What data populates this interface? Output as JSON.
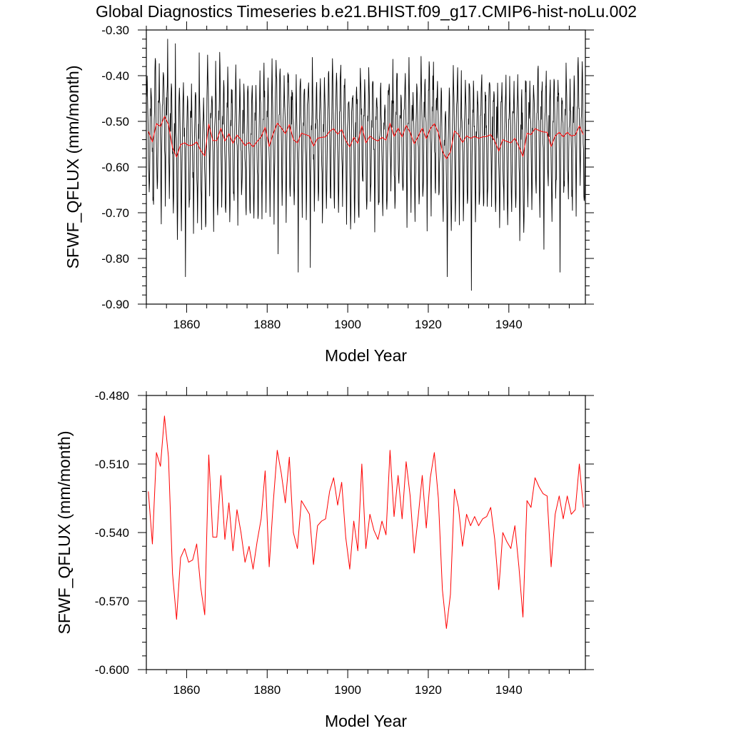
{
  "title": "Global Diagnostics Timeseries b.e21.BHIST.f09_g17.CMIP6-hist-noLu.002",
  "chart_data": [
    {
      "type": "line",
      "ylabel": "SFWF_QFLUX (mm/month)",
      "xlabel": "Model Year",
      "xlim": [
        1850,
        1959
      ],
      "ylim": [
        -0.9,
        -0.3
      ],
      "xticks": [
        1860,
        1880,
        1900,
        1920,
        1940
      ],
      "xtick_labels": [
        "1860",
        "1880",
        "1900",
        "1920",
        "1940"
      ],
      "xminor_step": 5,
      "yticks": [
        -0.9,
        -0.8,
        -0.7,
        -0.6,
        -0.5,
        -0.4,
        -0.3
      ],
      "ytick_labels": [
        "-0.90",
        "-0.80",
        "-0.70",
        "-0.60",
        "-0.50",
        "-0.40",
        "-0.30"
      ],
      "yminor_step": 0.02,
      "series": [
        {
          "color": "#000000",
          "monthly": {
            "x_start": 1850.0417,
            "x_step": 0.0833333,
            "cycle": [
              -0.51,
              -0.47,
              -0.44,
              -0.46,
              -0.5,
              -0.55,
              -0.6,
              -0.66,
              -0.71,
              -0.67,
              -0.58,
              -0.52
            ],
            "spike_years": [
              1855,
              1857,
              1859,
              1863,
              1882,
              1887,
              1890,
              1891,
              1915,
              1921,
              1924,
              1930,
              1948,
              1952,
              1957
            ],
            "spike_values": [
              -0.32,
              -0.33,
              -0.84,
              -0.35,
              -0.79,
              -0.83,
              -0.82,
              -0.36,
              -0.36,
              -0.37,
              -0.84,
              -0.87,
              -0.78,
              -0.83,
              -0.36
            ]
          }
        },
        {
          "color": "#ff0000",
          "ref": "annual"
        }
      ]
    },
    {
      "type": "line",
      "ylabel": "SFWF_QFLUX (mm/month)",
      "xlabel": "Model Year",
      "xlim": [
        1850,
        1959
      ],
      "ylim": [
        -0.6,
        -0.48
      ],
      "xticks": [
        1860,
        1880,
        1900,
        1920,
        1940
      ],
      "xtick_labels": [
        "1860",
        "1880",
        "1900",
        "1920",
        "1940"
      ],
      "xminor_step": 5,
      "yticks": [
        -0.6,
        -0.57,
        -0.54,
        -0.51,
        -0.48
      ],
      "ytick_labels": [
        "-0.600",
        "-0.570",
        "-0.540",
        "-0.510",
        "-0.480"
      ],
      "yminor_step": 0.006,
      "series": [
        {
          "color": "#ff0000",
          "ref": "annual"
        }
      ]
    }
  ],
  "annual": {
    "x_start": 1850.5,
    "x_step": 1,
    "values": [
      -0.522,
      -0.545,
      -0.505,
      -0.511,
      -0.489,
      -0.507,
      -0.558,
      -0.578,
      -0.551,
      -0.547,
      -0.553,
      -0.552,
      -0.545,
      -0.564,
      -0.576,
      -0.506,
      -0.542,
      -0.542,
      -0.515,
      -0.543,
      -0.527,
      -0.548,
      -0.53,
      -0.54,
      -0.553,
      -0.546,
      -0.556,
      -0.544,
      -0.534,
      -0.513,
      -0.555,
      -0.527,
      -0.504,
      -0.514,
      -0.527,
      -0.507,
      -0.54,
      -0.547,
      -0.526,
      -0.529,
      -0.532,
      -0.554,
      -0.537,
      -0.535,
      -0.534,
      -0.522,
      -0.516,
      -0.528,
      -0.518,
      -0.542,
      -0.556,
      -0.535,
      -0.548,
      -0.51,
      -0.547,
      -0.532,
      -0.539,
      -0.543,
      -0.535,
      -0.541,
      -0.504,
      -0.533,
      -0.515,
      -0.534,
      -0.509,
      -0.524,
      -0.549,
      -0.533,
      -0.515,
      -0.538,
      -0.516,
      -0.505,
      -0.525,
      -0.565,
      -0.582,
      -0.567,
      -0.521,
      -0.529,
      -0.546,
      -0.532,
      -0.537,
      -0.533,
      -0.537,
      -0.534,
      -0.533,
      -0.529,
      -0.543,
      -0.565,
      -0.54,
      -0.544,
      -0.547,
      -0.537,
      -0.555,
      -0.577,
      -0.526,
      -0.529,
      -0.516,
      -0.52,
      -0.523,
      -0.524,
      -0.555,
      -0.532,
      -0.524,
      -0.534,
      -0.524,
      -0.532,
      -0.53,
      -0.51,
      -0.529
    ]
  }
}
